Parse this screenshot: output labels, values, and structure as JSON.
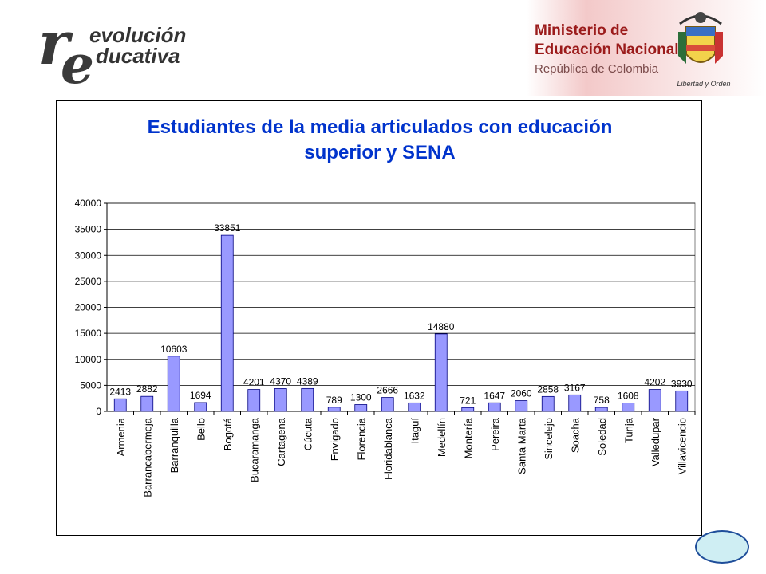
{
  "header": {
    "logo_left": {
      "big_r": "r",
      "big_e": "e",
      "word1": "evolución",
      "word2": "ducativa"
    },
    "ministry": {
      "line1": "Ministerio de",
      "line2": "Educación Nacional",
      "line3": "República de Colombia",
      "motto": "Libertad y Orden"
    }
  },
  "colors": {
    "bar_fill": "#9999ff",
    "bar_stroke": "#000080",
    "title": "#0033cc",
    "ministry_text": "#9b1b1b"
  },
  "icons": {
    "crest": "colombia-coat-of-arms-icon",
    "nav": "navigation-oval-button"
  },
  "chart_data": {
    "type": "bar",
    "title": "Estudiantes de la media articulados con educación superior y SENA",
    "title_lines": [
      "Estudiantes de la media articulados con educación",
      "superior y SENA"
    ],
    "categories": [
      "Armenia",
      "Barrancabermeja",
      "Barranquilla",
      "Bello",
      "Bogotá",
      "Bucaramanga",
      "Cartagena",
      "Cúcuta",
      "Envigado",
      "Florencia",
      "Floridablanca",
      "Itaguí",
      "Medellín",
      "Montería",
      "Pereira",
      "Santa Marta",
      "Sincelejo",
      "Soacha",
      "Soledad",
      "Tunja",
      "Valledupar",
      "Villavicencio"
    ],
    "values": [
      2413,
      2882,
      10603,
      1694,
      33851,
      4201,
      4370,
      4389,
      789,
      1300,
      2666,
      1632,
      14880,
      721,
      1647,
      2060,
      2858,
      3167,
      758,
      1608,
      4202,
      3930
    ],
    "ylim": [
      0,
      40000
    ],
    "yticks": [
      0,
      5000,
      10000,
      15000,
      20000,
      25000,
      30000,
      35000,
      40000
    ],
    "xlabel": "",
    "ylabel": "",
    "grid": false,
    "legend": "none"
  }
}
